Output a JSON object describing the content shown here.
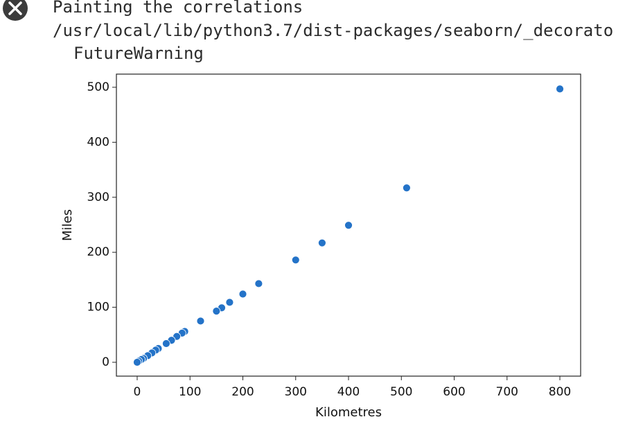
{
  "output": {
    "lines": [
      "Painting the correlations",
      "/usr/local/lib/python3.7/dist-packages/seaborn/_decorato",
      "FutureWarning"
    ]
  },
  "chart_data": {
    "type": "scatter",
    "xlabel": "Kilometres",
    "ylabel": "Miles",
    "x": [
      800,
      510,
      400,
      350,
      300,
      230,
      200,
      175,
      160,
      150,
      120,
      90,
      85,
      75,
      65,
      55,
      40,
      35,
      28,
      20,
      12,
      8,
      3,
      0
    ],
    "series": [
      {
        "name": "Miles",
        "color": "#2473c8",
        "values": [
          497,
          317,
          249,
          217,
          186,
          143,
          124,
          109,
          99,
          93,
          75,
          56,
          53,
          47,
          40,
          34,
          25,
          22,
          17,
          12,
          7,
          5,
          2,
          0
        ]
      }
    ],
    "xlim": [
      -39.3,
      839.3
    ],
    "ylim": [
      -25.2,
      523.9
    ],
    "xticks": [
      0,
      100,
      200,
      300,
      400,
      500,
      600,
      700,
      800
    ],
    "yticks": [
      0,
      100,
      200,
      300,
      400,
      500
    ],
    "grid": false
  }
}
